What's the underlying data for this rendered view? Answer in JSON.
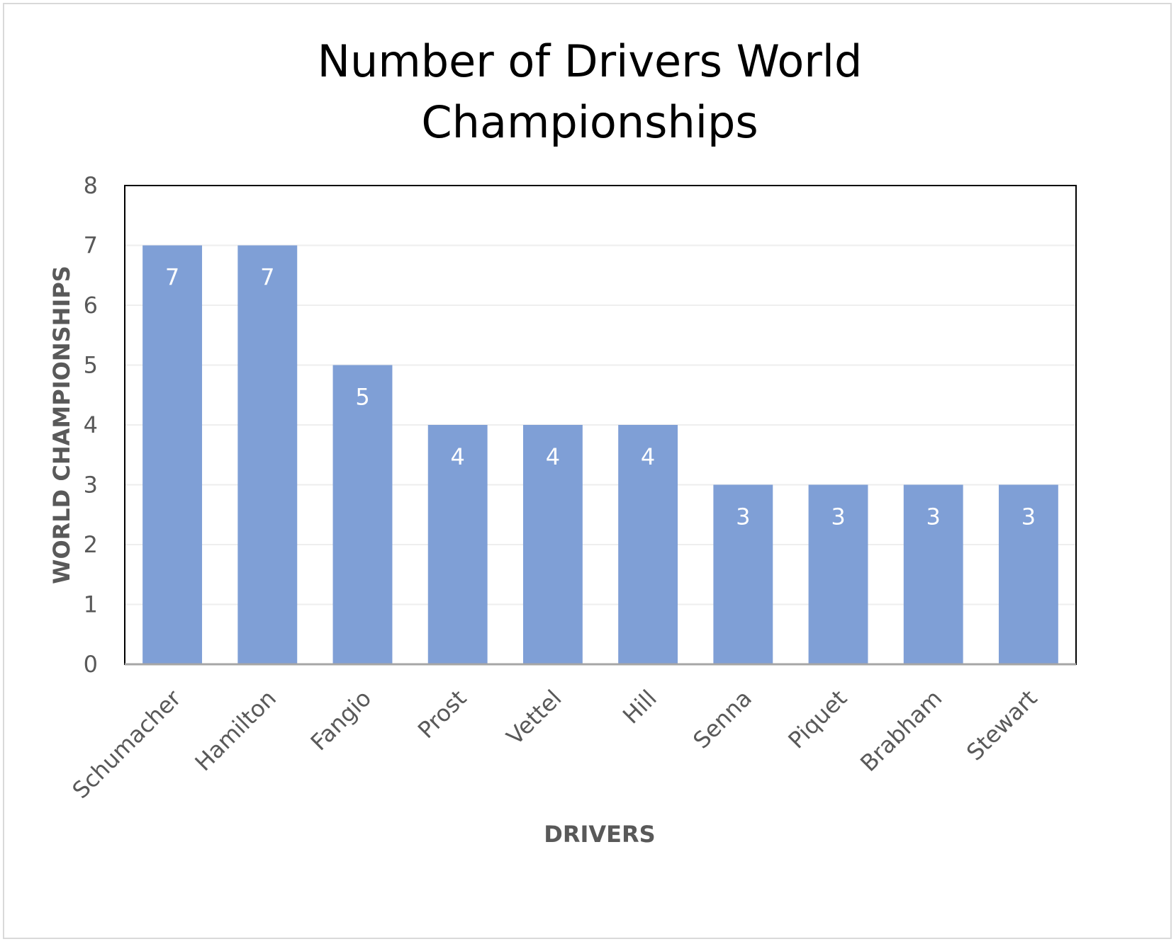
{
  "chart_data": {
    "type": "bar",
    "title_lines": [
      "Number of Drivers World",
      "Championships"
    ],
    "xlabel": "DRIVERS",
    "ylabel": "WORLD CHAMPIONSHIPS",
    "categories": [
      "Schumacher",
      "Hamilton",
      "Fangio",
      "Prost",
      "Vettel",
      "Hill",
      "Senna",
      "Piquet",
      "Brabham",
      "Stewart"
    ],
    "values": [
      7,
      7,
      5,
      4,
      4,
      4,
      3,
      3,
      3,
      3
    ],
    "ylim": [
      0,
      8
    ],
    "yticks": [
      0,
      1,
      2,
      3,
      4,
      5,
      6,
      7,
      8
    ],
    "grid": true,
    "legend": "none",
    "data_labels": true,
    "bar_color": "#7f9fd6",
    "label_color": "#ffffff"
  }
}
